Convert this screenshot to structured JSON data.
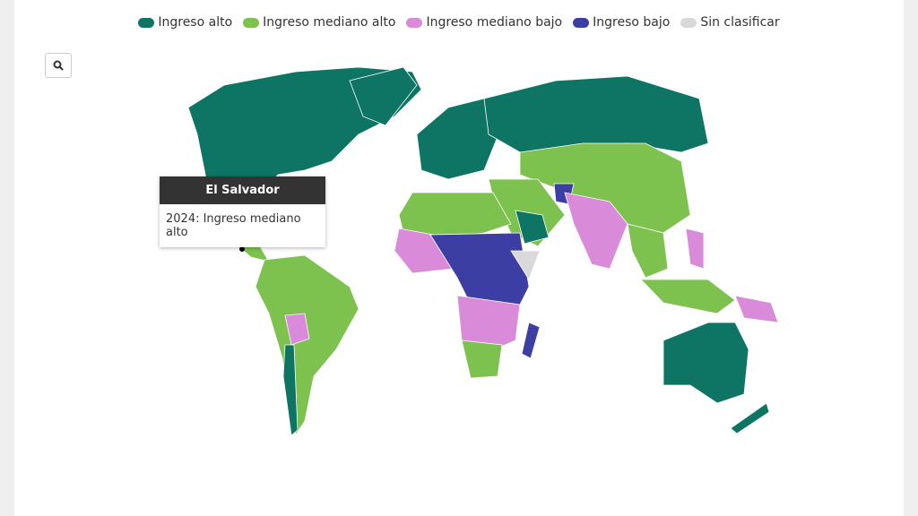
{
  "legend": [
    {
      "label": "Ingreso alto",
      "color": "#0e7565"
    },
    {
      "label": "Ingreso mediano alto",
      "color": "#7dc14f"
    },
    {
      "label": "Ingreso mediano bajo",
      "color": "#d98bd9"
    },
    {
      "label": "Ingreso bajo",
      "color": "#3c3ea3"
    },
    {
      "label": "Sin clasificar",
      "color": "#d9d9d9"
    }
  ],
  "tooltip": {
    "title": "El Salvador",
    "text": "2024: Ingreso mediano alto"
  }
}
